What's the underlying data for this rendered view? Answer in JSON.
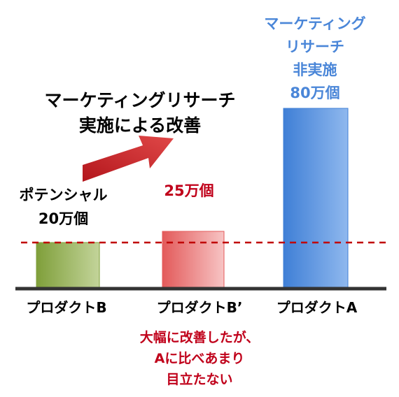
{
  "chart_data": {
    "type": "bar",
    "categories": [
      "プロダクトB",
      "プロダクトB’",
      "プロダクトA"
    ],
    "values": [
      20,
      25,
      80
    ],
    "unit": "万個",
    "reference_line": 20,
    "ylim": [
      0,
      100
    ],
    "grid": false,
    "value_labels": [
      [
        "ポテンシャル",
        "20万個"
      ],
      [
        "25万個"
      ],
      [
        "マーケティング",
        "リサーチ",
        "非実施",
        "80万個"
      ]
    ],
    "improvement_annotation": [
      "マーケティングリサーチ",
      "実施による改善"
    ],
    "bottom_note": [
      "大幅に改善したが、",
      "Aに比べあまり",
      "目立たない"
    ]
  },
  "colors": {
    "bar_b": "#7f9f3a",
    "bar_b_light": "#c3d49a",
    "bar_b2": "#e35a5a",
    "bar_b2_light": "#f7c4c4",
    "bar_a": "#3f7fd6",
    "bar_a_light": "#8fb8ee",
    "reference_line": "#c00000",
    "arrow": "#c0262a",
    "baseline": "#333333"
  }
}
